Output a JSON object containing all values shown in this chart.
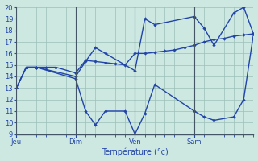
{
  "title": "",
  "xlabel": "Température (°c)",
  "ylabel": "",
  "bg_color": "#cce8e0",
  "grid_color": "#9bbfb8",
  "line_color": "#2244aa",
  "ylim": [
    9,
    20
  ],
  "yticks": [
    9,
    10,
    11,
    12,
    13,
    14,
    15,
    16,
    17,
    18,
    19,
    20
  ],
  "day_labels": [
    "Jeu",
    "Dim",
    "Ven",
    "Sam"
  ],
  "day_positions": [
    0,
    12,
    24,
    36
  ],
  "x_minor_ticks": [
    0,
    2,
    4,
    6,
    8,
    10,
    12,
    14,
    16,
    18,
    20,
    22,
    24,
    26,
    28,
    30,
    32,
    34,
    36,
    38,
    40,
    42,
    44,
    46,
    48
  ],
  "x_total": 48,
  "lines": [
    {
      "x": [
        0,
        2,
        4,
        12,
        14,
        16,
        18,
        22,
        24,
        26,
        28,
        36,
        38,
        40,
        44,
        46,
        48
      ],
      "y": [
        13,
        14.8,
        14.8,
        13.8,
        11.0,
        9.8,
        11.0,
        11.0,
        9.0,
        10.8,
        13.3,
        11.0,
        10.5,
        10.2,
        10.5,
        12.0,
        17.7
      ]
    },
    {
      "x": [
        0,
        2,
        4,
        12,
        14,
        16,
        18,
        24,
        26,
        28,
        36,
        38,
        40,
        44,
        46,
        48
      ],
      "y": [
        13,
        14.8,
        14.8,
        14.0,
        15.3,
        16.5,
        16.0,
        14.5,
        19.0,
        18.5,
        19.2,
        18.2,
        16.7,
        19.5,
        20.0,
        17.7
      ]
    },
    {
      "x": [
        0,
        2,
        4,
        6,
        8,
        12,
        14,
        16,
        18,
        20,
        22,
        24,
        26,
        28,
        30,
        32,
        34,
        36,
        38,
        40,
        42,
        44,
        46,
        48
      ],
      "y": [
        13,
        14.8,
        14.8,
        14.8,
        14.8,
        14.3,
        15.4,
        15.3,
        15.2,
        15.1,
        15.0,
        16.0,
        16.0,
        16.1,
        16.2,
        16.3,
        16.5,
        16.7,
        17.0,
        17.2,
        17.3,
        17.5,
        17.6,
        17.7
      ]
    }
  ]
}
